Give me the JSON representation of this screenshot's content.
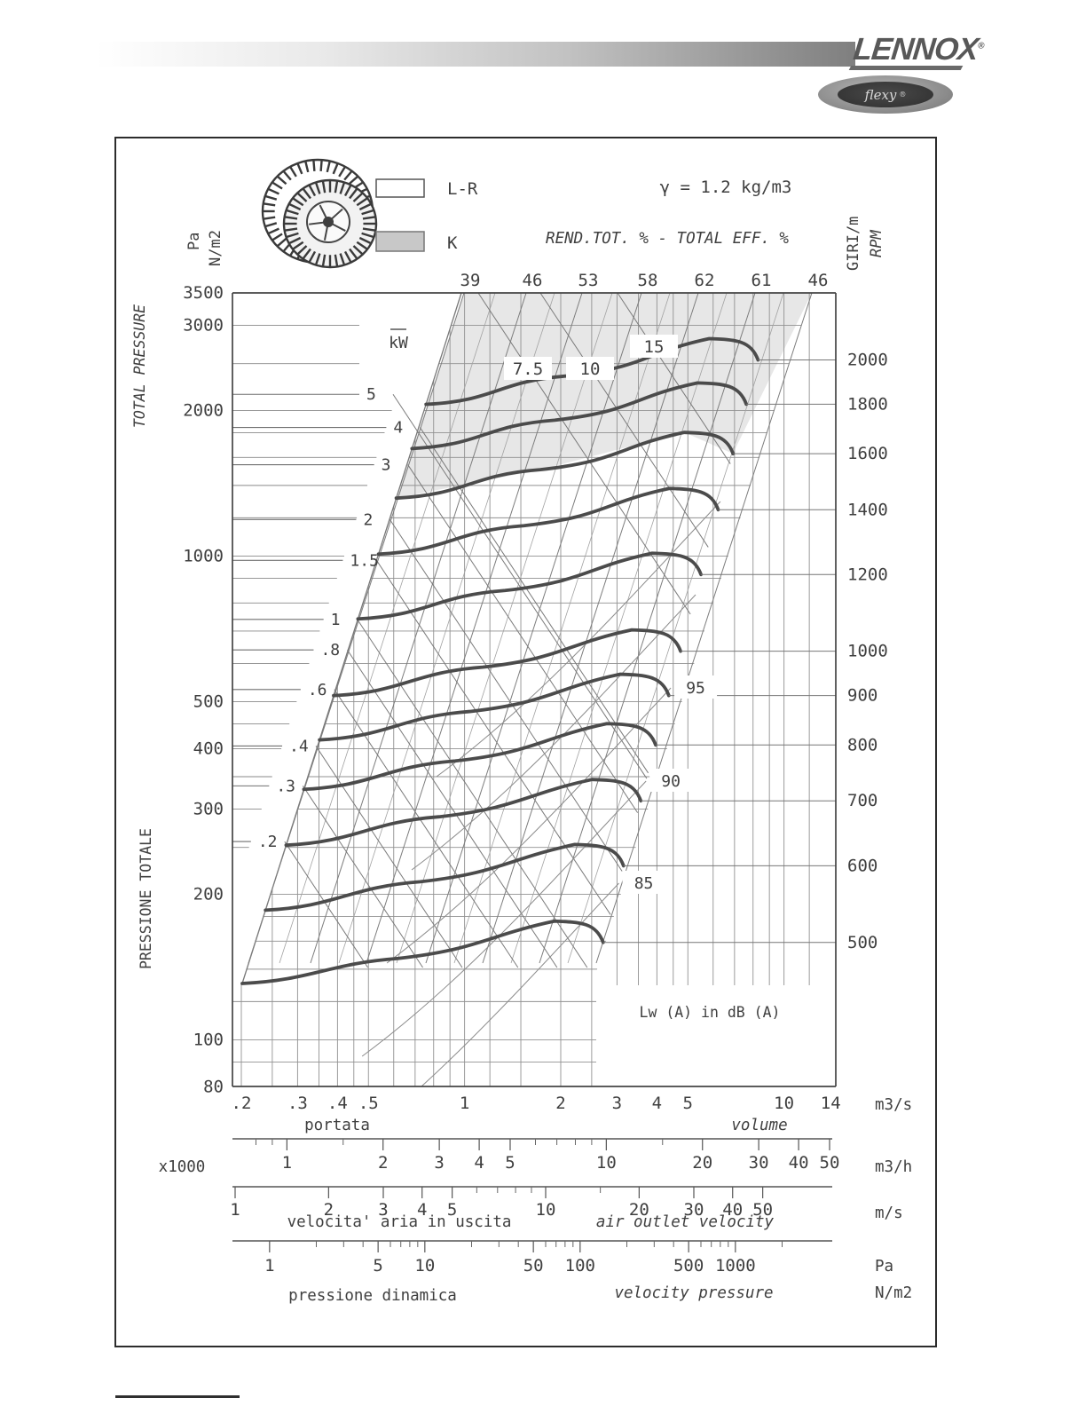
{
  "header": {
    "brand": "LENNOX",
    "brand_mark": "®",
    "badge_text": "flexy",
    "badge_mark": "®"
  },
  "figure": {
    "left_axis": {
      "title_en": "TOTAL PRESSURE",
      "title_it": "PRESSIONE TOTALE",
      "unit_1": "Pa",
      "unit_2": "N/m2"
    },
    "right_axis": {
      "title_it": "GIRI/m",
      "title_en": "RPM"
    },
    "power_unit": "kW",
    "flow": {
      "caption_it": "portata",
      "caption_en": "volume",
      "unit": "m3/s"
    },
    "flow_h": {
      "multiplier": "x1000",
      "unit": "m3/h"
    },
    "velocity": {
      "caption_it": "velocita' aria in uscita",
      "caption_en": "air outlet velocity",
      "unit": "m/s"
    },
    "dyn_pressure": {
      "caption_it": "pressione dinamica",
      "caption_en": "velocity pressure",
      "unit_1": "Pa",
      "unit_2": "N/m2"
    }
  },
  "chart_data": {
    "type": "line",
    "title": "Fan performance curves",
    "density_note": "γ = 1.2 kg/m3",
    "configurations": [
      "L-R",
      "K"
    ],
    "x_axis": {
      "label": "portata - volume",
      "unit": "m3/s",
      "scale": "log",
      "range": [
        0.2,
        14
      ],
      "tick_labels": [
        0.2,
        0.3,
        0.4,
        0.5,
        1,
        2,
        3,
        4,
        5,
        10,
        14
      ]
    },
    "y_axis": {
      "label": "TOTAL PRESSURE",
      "units": [
        "Pa",
        "N/m2"
      ],
      "scale": "log",
      "range": [
        80,
        3500
      ],
      "tick_labels": [
        3500,
        3000,
        2000,
        1000,
        500,
        400,
        300,
        200,
        100,
        80
      ]
    },
    "rpm_curves": {
      "axis_label": "GIRI/m - RPM",
      "values": [
        2000,
        1800,
        1600,
        1400,
        1200,
        1000,
        900,
        800,
        700,
        600,
        500
      ],
      "peak_pressure_pa": [
        2544,
        2061,
        1628,
        1247,
        916,
        636,
        515,
        407,
        312,
        229,
        159
      ]
    },
    "efficiency_lines": {
      "title": "REND.TOT. % - TOTAL EFF. %",
      "values": [
        39,
        46,
        53,
        58,
        62,
        61,
        46
      ]
    },
    "power_lines_kw": {
      "unit": "kW",
      "stub_values": [
        5,
        4,
        3,
        2,
        1.5,
        1,
        0.8,
        0.6,
        0.4,
        0.3,
        0.2
      ],
      "stub_pressures_pa": [
        2160,
        1845,
        1545,
        1190,
        980,
        740,
        640,
        530,
        405,
        335,
        257
      ],
      "boxed_values": [
        7.5,
        10,
        15
      ]
    },
    "sound_levels_db": {
      "caption": "Lw (A)  in dB (A)",
      "labeled_values": [
        95,
        90,
        85
      ]
    },
    "secondary_scales": {
      "flow_m3h": {
        "unit": "m3/h",
        "multiplier": "x1000",
        "tick_labels": [
          1,
          2,
          3,
          4,
          5,
          10,
          20,
          30,
          40,
          50
        ]
      },
      "air_velocity": {
        "unit": "m/s",
        "tick_labels": [
          1,
          2,
          3,
          4,
          5,
          10,
          20,
          30,
          40,
          50
        ]
      },
      "velocity_pressure": {
        "units": [
          "Pa",
          "N/m2"
        ],
        "tick_labels": [
          1,
          5,
          10,
          50,
          100,
          500,
          1000
        ]
      }
    }
  }
}
